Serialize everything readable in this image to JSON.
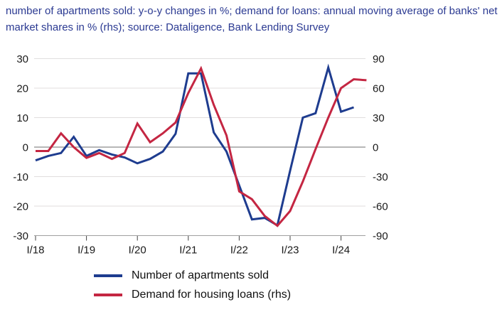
{
  "header": {
    "title": "number of apartments sold: y-o-y changes in %; demand for loans: annual moving average of banks' net market shares in % (rhs); source: Dataligence, Bank Lending Survey"
  },
  "colors": {
    "title_text": "#2b3a92",
    "apartments_line": "#1e3c8f",
    "loans_line": "#c42642",
    "grid_line": "#e0dede",
    "zero_line": "#6f6f6f",
    "bottom_axis_line": "#a0a0a0",
    "tick_mark": "#444444",
    "axis_text": "#1a1a1a"
  },
  "chart_data": {
    "type": "line",
    "title": "number of apartments sold: y-o-y changes in %; demand for loans: annual moving average of banks' net market shares in % (rhs); source: Dataligence, Bank Lending Survey",
    "frequency": "quarterly",
    "x_quarters": [
      "I/18",
      "II/18",
      "III/18",
      "IV/18",
      "I/19",
      "II/19",
      "III/19",
      "IV/19",
      "I/20",
      "II/20",
      "III/20",
      "IV/20",
      "I/21",
      "II/21",
      "III/21",
      "IV/21",
      "I/22",
      "II/22",
      "III/22",
      "IV/22",
      "I/23",
      "II/23",
      "III/23",
      "IV/23",
      "I/24",
      "II/24",
      "III/24"
    ],
    "x_tick_labels": [
      "I/18",
      "I/19",
      "I/20",
      "I/21",
      "I/22",
      "I/23",
      "I/24"
    ],
    "left_axis": {
      "min": -30,
      "max": 30,
      "ticks": [
        30,
        20,
        10,
        0,
        -10,
        -20,
        -30
      ]
    },
    "right_axis": {
      "min": -90,
      "max": 90,
      "ticks": [
        90,
        60,
        30,
        0,
        -30,
        -60,
        -90
      ]
    },
    "grid": "horizontal-only",
    "legend_position": "bottom",
    "series": [
      {
        "name": "Number of apartments sold",
        "axis": "left",
        "color": "#1e3c8f",
        "values": [
          -4.5,
          -3,
          -2,
          3.5,
          -3,
          -1,
          -2.5,
          -3.5,
          -5.5,
          -4,
          -1.5,
          4.5,
          25,
          25,
          5,
          -1.5,
          -13,
          -24.5,
          -24,
          -26.5,
          -8,
          10,
          11.5,
          27,
          12,
          13.5,
          null
        ]
      },
      {
        "name": "Demand for housing loans (rhs)",
        "axis": "right",
        "color": "#c42642",
        "values": [
          -4,
          -4,
          14,
          0,
          -11,
          -6,
          -12,
          -6,
          24,
          5,
          14,
          25,
          55,
          80,
          43,
          12,
          -45,
          -53,
          -70,
          -80,
          -65,
          -35,
          -2,
          30,
          60,
          69,
          68
        ]
      }
    ]
  },
  "legend": {
    "items": [
      {
        "label": "Number of apartments sold"
      },
      {
        "label": "Demand for housing loans (rhs)"
      }
    ]
  }
}
